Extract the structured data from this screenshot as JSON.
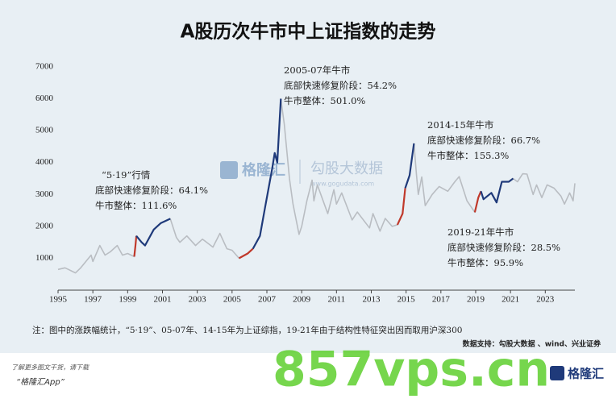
{
  "chart_data": {
    "type": "line",
    "title": "A股历次牛市中上证指数的走势",
    "xlim": [
      1995,
      2024.7
    ],
    "ylim": [
      0,
      7000
    ],
    "xticks": [
      1995,
      1997,
      1999,
      2001,
      2003,
      2005,
      2007,
      2009,
      2011,
      2013,
      2015,
      2017,
      2019,
      2021,
      2023
    ],
    "yticks": [
      1000,
      2000,
      3000,
      4000,
      5000,
      6000,
      7000
    ],
    "grid": false,
    "series": [
      {
        "color": "#b9bdc2",
        "x": [
          1995.0,
          1995.4,
          1995.6,
          1996.0,
          1996.3,
          1996.9,
          1997.0,
          1997.4,
          1997.7,
          1998.0,
          1998.4,
          1998.7,
          1999.0,
          1999.38,
          1999.45,
          1999.5,
          1999.8,
          2000.0,
          2000.5,
          2000.9,
          2001.45,
          2001.8,
          2002.0,
          2002.4,
          2002.9,
          2003.3,
          2003.9,
          2004.3,
          2004.7,
          2005.0,
          2005.4,
          2005.9,
          2006.2,
          2006.6,
          2006.9,
          2007.3,
          2007.45,
          2007.6,
          2007.8,
          2008.0,
          2008.3,
          2008.5,
          2008.85,
          2009.0,
          2009.3,
          2009.6,
          2009.7,
          2009.9,
          2010.5,
          2010.85,
          2011.0,
          2011.3,
          2011.9,
          2012.2,
          2012.9,
          2013.1,
          2013.5,
          2013.8,
          2014.2,
          2014.5,
          2014.8,
          2014.95,
          2015.2,
          2015.45,
          2015.6,
          2015.7,
          2015.9,
          2016.1,
          2016.5,
          2016.9,
          2017.4,
          2017.8,
          2018.05,
          2018.5,
          2018.95,
          2019.15,
          2019.3,
          2019.45,
          2019.9,
          2020.2,
          2020.5,
          2020.9,
          2021.15,
          2021.4,
          2021.7,
          2021.95,
          2022.3,
          2022.5,
          2022.8,
          2023.1,
          2023.5,
          2023.9,
          2024.1,
          2024.4,
          2024.6,
          2024.7
        ],
        "values": [
          650,
          700,
          650,
          540,
          700,
          1100,
          900,
          1400,
          1100,
          1200,
          1400,
          1100,
          1150,
          1050,
          1400,
          1700,
          1500,
          1400,
          1900,
          2100,
          2240,
          1650,
          1500,
          1700,
          1400,
          1600,
          1350,
          1780,
          1300,
          1250,
          1000,
          1150,
          1300,
          1700,
          2600,
          3800,
          4300,
          4000,
          6000,
          5200,
          3500,
          2700,
          1750,
          2000,
          2800,
          3450,
          2800,
          3300,
          2400,
          3150,
          2700,
          3050,
          2200,
          2450,
          1950,
          2400,
          1850,
          2250,
          2000,
          2050,
          2400,
          3200,
          3600,
          4600,
          3600,
          3000,
          3550,
          2650,
          3000,
          3250,
          3100,
          3400,
          3560,
          2800,
          2440,
          2900,
          3100,
          2850,
          3050,
          2750,
          3400,
          3400,
          3500,
          3400,
          3650,
          3640,
          3000,
          3300,
          2900,
          3300,
          3200,
          2950,
          2700,
          3050,
          2800,
          3350
        ]
      },
      {
        "color": "#c0392b",
        "x": [
          1999.38,
          1999.45,
          1999.5
        ],
        "values": [
          1050,
          1400,
          1700
        ]
      },
      {
        "color": "#1f3a7a",
        "x": [
          1999.5,
          1999.8,
          2000.0,
          2000.5,
          2000.9,
          2001.45
        ],
        "values": [
          1700,
          1500,
          1400,
          1900,
          2100,
          2240
        ]
      },
      {
        "color": "#c0392b",
        "x": [
          2005.4,
          2005.9,
          2006.2
        ],
        "values": [
          1000,
          1150,
          1300
        ]
      },
      {
        "color": "#1f3a7a",
        "x": [
          2006.2,
          2006.6,
          2006.9,
          2007.3,
          2007.45,
          2007.6,
          2007.8
        ],
        "values": [
          1300,
          1700,
          2600,
          3800,
          4300,
          4000,
          6000
        ]
      },
      {
        "color": "#c0392b",
        "x": [
          2014.5,
          2014.8,
          2014.95
        ],
        "values": [
          2050,
          2400,
          3200
        ]
      },
      {
        "color": "#1f3a7a",
        "x": [
          2014.95,
          2015.2,
          2015.45
        ],
        "values": [
          3200,
          3600,
          4600
        ]
      },
      {
        "color": "#c0392b",
        "x": [
          2018.95,
          2019.15,
          2019.3
        ],
        "values": [
          2440,
          2900,
          3100
        ]
      },
      {
        "color": "#1f3a7a",
        "x": [
          2019.3,
          2019.45,
          2019.9,
          2020.2,
          2020.5,
          2020.9,
          2021.15
        ],
        "values": [
          3100,
          2850,
          3050,
          2750,
          3400,
          3400,
          3500
        ]
      }
    ],
    "annotations": [
      [
        "“5·19”行情",
        "底部快速修复阶段：64.1%",
        "牛市整体：111.6%"
      ],
      [
        "2005-07年牛市",
        "底部快速修复阶段：54.2%",
        "牛市整体：501.0%"
      ],
      [
        "2014-15年牛市",
        "底部快速修复阶段：66.7%",
        "牛市整体：155.3%"
      ],
      [
        "2019-21年牛市",
        "底部快速修复阶段：28.5%",
        "牛市整体：95.9%"
      ]
    ],
    "note": "注：图中的涨跌幅统计，“5·19”、05-07年、14-15年为上证综指，19-21年由于结构性特征突出因而取用沪深300",
    "source": "数据支持：勾股大数据 、wind、兴业证券"
  },
  "watermark": {
    "brand": "格隆汇",
    "product": "勾股大数据",
    "url": "www.gogudata.com"
  },
  "footer": {
    "line1": "了解更多图文干货，请下载",
    "line2": "“格隆汇App”",
    "site": "857vps.cn",
    "logo": "格隆汇"
  }
}
